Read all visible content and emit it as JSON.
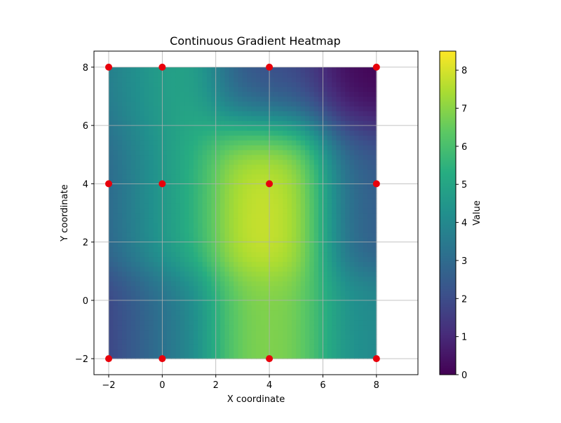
{
  "chart_data": {
    "type": "heatmap",
    "title": "Continuous Gradient Heatmap",
    "xlabel": "X coordinate",
    "ylabel": "Y coordinate",
    "xlim": [
      -2.55,
      9.55
    ],
    "ylim": [
      -2.55,
      8.55
    ],
    "extent": {
      "x": [
        -2,
        8
      ],
      "y": [
        -2,
        8
      ]
    },
    "x_ticks": [
      -2,
      0,
      2,
      4,
      6,
      8
    ],
    "y_ticks": [
      -2,
      0,
      2,
      4,
      6,
      8
    ],
    "grid": true,
    "colormap": "viridis",
    "colorbar": {
      "label": "Value",
      "min": 0,
      "max": 8.5,
      "ticks": [
        0,
        1,
        2,
        3,
        4,
        5,
        6,
        7,
        8
      ]
    },
    "sample_points": {
      "color": "#e8000b",
      "points": [
        {
          "x": -2,
          "y": 8,
          "value": 3.0
        },
        {
          "x": 0,
          "y": 8,
          "value": 5.5
        },
        {
          "x": 4,
          "y": 8,
          "value": 2.0
        },
        {
          "x": 8,
          "y": 8,
          "value": 0.0
        },
        {
          "x": -2,
          "y": 4,
          "value": 2.0
        },
        {
          "x": 0,
          "y": 4,
          "value": 5.5
        },
        {
          "x": 4,
          "y": 4,
          "value": 8.0
        },
        {
          "x": 8,
          "y": 4,
          "value": 2.5
        },
        {
          "x": -2,
          "y": -2,
          "value": 1.0
        },
        {
          "x": 0,
          "y": -2,
          "value": 4.0
        },
        {
          "x": 4,
          "y": -2,
          "value": 7.0
        },
        {
          "x": 8,
          "y": -2,
          "value": 4.0
        }
      ]
    }
  }
}
